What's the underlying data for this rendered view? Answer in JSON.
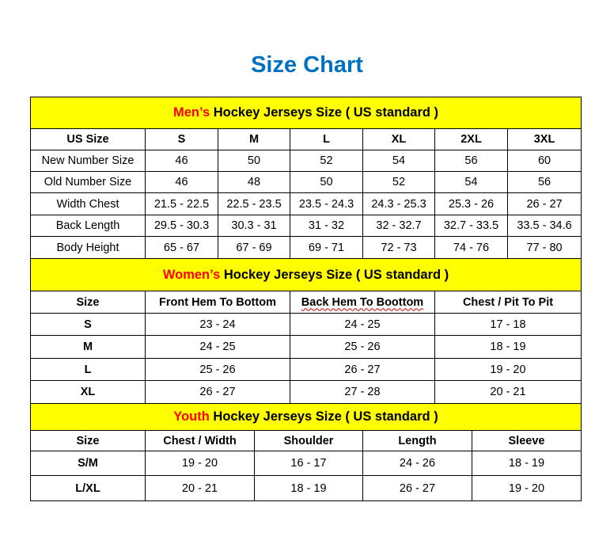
{
  "title": "Size Chart",
  "colors": {
    "band_background": "#ffff00",
    "band_highlight": "#ff0000",
    "title": "#0070c0"
  },
  "men": {
    "band_highlight": "Men’s",
    "band_rest": " Hockey Jerseys Size ( US standard )",
    "header": [
      "US Size",
      "S",
      "M",
      "L",
      "XL",
      "2XL",
      "3XL"
    ],
    "rows": [
      [
        "New Number Size",
        "46",
        "50",
        "52",
        "54",
        "56",
        "60"
      ],
      [
        "Old Number Size",
        "46",
        "48",
        "50",
        "52",
        "54",
        "56"
      ],
      [
        "Width Chest",
        "21.5 - 22.5",
        "22.5 - 23.5",
        "23.5 - 24.3",
        "24.3 - 25.3",
        "25.3 - 26",
        "26 - 27"
      ],
      [
        "Back Length",
        "29.5 - 30.3",
        "30.3 - 31",
        "31 - 32",
        "32 - 32.7",
        "32.7 - 33.5",
        "33.5 - 34.6"
      ],
      [
        "Body Height",
        "65 - 67",
        "67 - 69",
        "69 - 71",
        "72 - 73",
        "74 - 76",
        "77 - 80"
      ]
    ]
  },
  "women": {
    "band_highlight": "Women’s",
    "band_rest": " Hockey Jerseys Size ( US standard )",
    "header": [
      "Size",
      "Front Hem To Bottom",
      "Back Hem To Boottom",
      "Chest / Pit To Pit"
    ],
    "rows": [
      [
        "S",
        "23 - 24",
        "24 - 25",
        "17 - 18"
      ],
      [
        "M",
        "24 - 25",
        "25 - 26",
        "18 - 19"
      ],
      [
        "L",
        "25 - 26",
        "26 - 27",
        "19 - 20"
      ],
      [
        "XL",
        "26 - 27",
        "27 - 28",
        "20 - 21"
      ]
    ]
  },
  "youth": {
    "band_highlight": "Youth",
    "band_rest": " Hockey Jerseys Size ( US standard )",
    "header": [
      "Size",
      "Chest / Width",
      "Shoulder",
      "Length",
      "Sleeve"
    ],
    "rows": [
      [
        "S/M",
        "19 - 20",
        "16 - 17",
        "24 - 26",
        "18 - 19"
      ],
      [
        "L/XL",
        "20 - 21",
        "18 - 19",
        "26 - 27",
        "19 - 20"
      ]
    ]
  }
}
